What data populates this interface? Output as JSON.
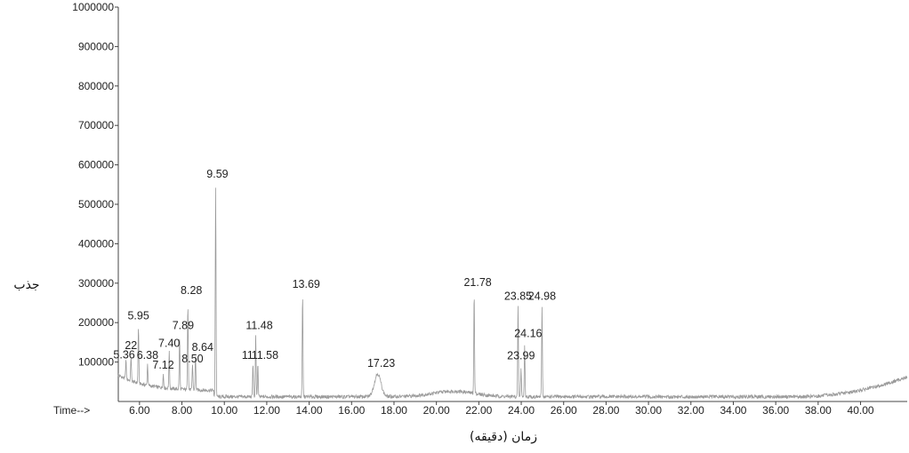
{
  "chart_data": {
    "type": "line",
    "title": "",
    "xlabel": "زمان (دقیقه)",
    "ylabel": "جذب",
    "x_prefix": "Time-->",
    "xlim": [
      5.0,
      42.2
    ],
    "ylim": [
      0,
      1000000
    ],
    "x_ticks": [
      "6.00",
      "8.00",
      "10.00",
      "12.00",
      "14.00",
      "16.00",
      "18.00",
      "20.00",
      "22.00",
      "24.00",
      "26.00",
      "28.00",
      "30.00",
      "32.00",
      "34.00",
      "36.00",
      "38.00",
      "40.00"
    ],
    "y_ticks": [
      "100000",
      "200000",
      "300000",
      "400000",
      "500000",
      "600000",
      "700000",
      "800000",
      "900000",
      "1000000"
    ],
    "peaks": [
      {
        "label": "5.36",
        "x": 5.36,
        "y": 105000
      },
      {
        "label": "22",
        "x": 5.6,
        "y": 115000
      },
      {
        "label": "5.95",
        "x": 5.95,
        "y": 190000
      },
      {
        "label": "6.38",
        "x": 6.38,
        "y": 95000
      },
      {
        "label": "7.12",
        "x": 7.12,
        "y": 70000
      },
      {
        "label": "7.40",
        "x": 7.4,
        "y": 125000
      },
      {
        "label": "7.89",
        "x": 7.89,
        "y": 165000
      },
      {
        "label": "8.28",
        "x": 8.28,
        "y": 250000
      },
      {
        "label": "8.50",
        "x": 8.5,
        "y": 95000
      },
      {
        "label": "8.64",
        "x": 8.64,
        "y": 115000
      },
      {
        "label": "9.59",
        "x": 9.59,
        "y": 545000
      },
      {
        "label": "11",
        "x": 11.35,
        "y": 95000
      },
      {
        "label": "11.48",
        "x": 11.48,
        "y": 165000
      },
      {
        "label": "11.58",
        "x": 11.58,
        "y": 95000
      },
      {
        "label": "13.69",
        "x": 13.69,
        "y": 270000
      },
      {
        "label": "17.23",
        "x": 17.23,
        "y": 70000
      },
      {
        "label": "21.78",
        "x": 21.78,
        "y": 275000
      },
      {
        "label": "23.85",
        "x": 23.85,
        "y": 240000
      },
      {
        "label": "23.99",
        "x": 23.99,
        "y": 85000
      },
      {
        "label": "24.16",
        "x": 24.16,
        "y": 145000
      },
      {
        "label": "24.98",
        "x": 24.98,
        "y": 240000
      }
    ],
    "line_color": "#9a9a9a",
    "grid": false
  }
}
